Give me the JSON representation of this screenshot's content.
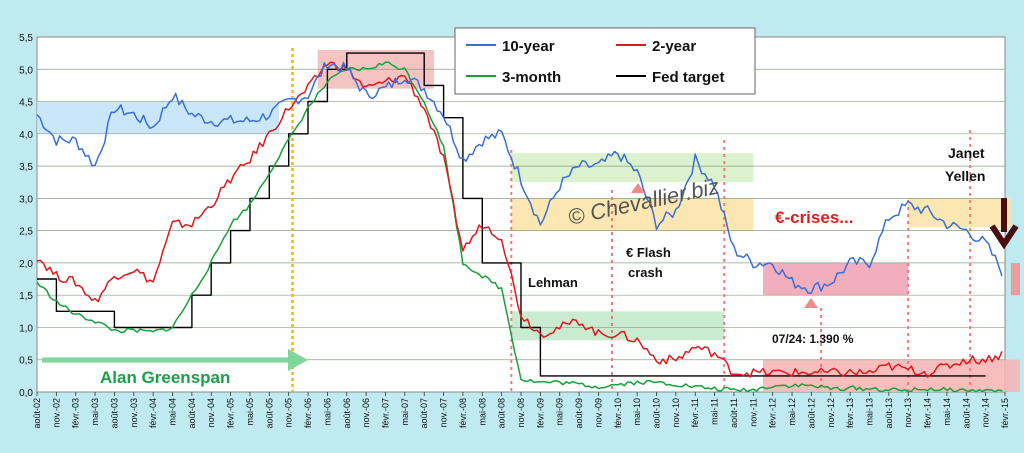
{
  "chart_data": {
    "type": "line",
    "ylim": [
      0,
      5.5
    ],
    "grid": true,
    "y_ticks": [
      "0,0",
      "0,5",
      "1,0",
      "1,5",
      "2,0",
      "2,5",
      "3,0",
      "3,5",
      "4,0",
      "4,5",
      "5,0",
      "5,5"
    ],
    "x_ticks": [
      "août-02",
      "nov.-02",
      "févr.-03",
      "mai-03",
      "août-03",
      "nov.-03",
      "févr.-04",
      "mai-04",
      "août-04",
      "nov.-04",
      "févr.-05",
      "mai-05",
      "août-05",
      "nov.-05",
      "févr.-06",
      "mai-06",
      "août-06",
      "nov.-06",
      "févr.-07",
      "mai-07",
      "août-07",
      "nov.-07",
      "févr.-08",
      "mai-08",
      "août-08",
      "nov.-08",
      "févr.-09",
      "mai-09",
      "août-09",
      "nov.-09",
      "févr.-10",
      "mai-10",
      "août-10",
      "nov.-10",
      "févr.-11",
      "mai-11",
      "août-11",
      "nov.-11",
      "févr.-12",
      "mai-12",
      "août-12",
      "nov.-12",
      "févr.-13",
      "mai-13",
      "août-13",
      "nov.-13",
      "févr.-14",
      "mai-14",
      "août-14",
      "nov.-14",
      "févr.-15"
    ],
    "legend": {
      "placement": "top-center",
      "entries": [
        "10-year",
        "2-year",
        "3-month",
        "Fed target"
      ]
    },
    "series": [
      {
        "name": "10-year",
        "color": "#3a6fd8",
        "values": [
          4.3,
          3.9,
          3.9,
          3.5,
          4.4,
          4.3,
          4.1,
          4.6,
          4.3,
          4.2,
          4.2,
          4.2,
          4.3,
          4.5,
          4.6,
          5.1,
          5.0,
          4.6,
          4.7,
          4.9,
          4.7,
          4.3,
          3.6,
          3.9,
          4.0,
          3.3,
          2.6,
          3.2,
          3.5,
          3.5,
          3.7,
          3.4,
          2.6,
          2.8,
          3.6,
          3.2,
          2.2,
          2.0,
          2.0,
          1.7,
          1.6,
          1.7,
          2.0,
          2.0,
          2.7,
          2.9,
          2.8,
          2.6,
          2.5,
          2.3,
          1.8
        ]
      },
      {
        "name": "2-year",
        "color": "#e0181c",
        "values": [
          2.1,
          1.8,
          1.7,
          1.4,
          1.8,
          1.9,
          1.7,
          2.6,
          2.6,
          2.9,
          3.3,
          3.6,
          4.0,
          4.4,
          4.7,
          5.1,
          5.0,
          4.7,
          4.8,
          4.9,
          4.4,
          3.6,
          2.2,
          2.6,
          2.4,
          1.2,
          0.9,
          1.0,
          1.1,
          0.9,
          0.9,
          0.8,
          0.5,
          0.5,
          0.7,
          0.6,
          0.3,
          0.3,
          0.3,
          0.3,
          0.3,
          0.3,
          0.3,
          0.3,
          0.4,
          0.35,
          0.3,
          0.4,
          0.5,
          0.5,
          0.6
        ]
      },
      {
        "name": "3-month",
        "color": "#16a23a",
        "values": [
          1.7,
          1.4,
          1.2,
          1.1,
          0.95,
          0.95,
          0.93,
          1.0,
          1.5,
          2.0,
          2.6,
          2.9,
          3.4,
          3.9,
          4.4,
          4.8,
          5.0,
          5.0,
          5.1,
          5.0,
          4.5,
          3.8,
          2.0,
          1.8,
          1.6,
          0.2,
          0.15,
          0.15,
          0.12,
          0.08,
          0.12,
          0.15,
          0.15,
          0.12,
          0.08,
          0.05,
          0.03,
          0.03,
          0.1,
          0.1,
          0.1,
          0.05,
          0.06,
          0.05,
          0.03,
          0.02,
          0.05,
          0.03,
          0.02,
          0.02,
          0.02
        ]
      },
      {
        "name": "Fed target",
        "color": "#000000",
        "values": [
          1.75,
          1.25,
          1.25,
          1.25,
          1.0,
          1.0,
          1.0,
          1.0,
          1.5,
          2.0,
          2.5,
          3.0,
          3.5,
          4.0,
          4.5,
          5.0,
          5.25,
          5.25,
          5.25,
          5.25,
          4.75,
          4.25,
          3.0,
          2.0,
          2.0,
          1.0,
          0.25,
          0.25,
          0.25,
          0.25,
          0.25,
          0.25,
          0.25,
          0.25,
          0.25,
          0.25,
          0.25,
          0.25,
          0.25,
          0.25,
          0.25,
          0.25,
          0.25,
          0.25,
          0.25,
          0.25,
          0.25,
          0.25,
          0.25,
          0.25,
          null
        ]
      }
    ],
    "annotations": {
      "greenspan": "Alan Greenspan",
      "lehman": "Lehman",
      "flash_line1": "€ Flash",
      "flash_line2": "crash",
      "crises": "€-crises...",
      "yellen_line1": "Janet",
      "yellen_line2": "Yellen",
      "low_note": "07/24:  1.390 %",
      "watermark": "© Chevallier.biz"
    }
  }
}
